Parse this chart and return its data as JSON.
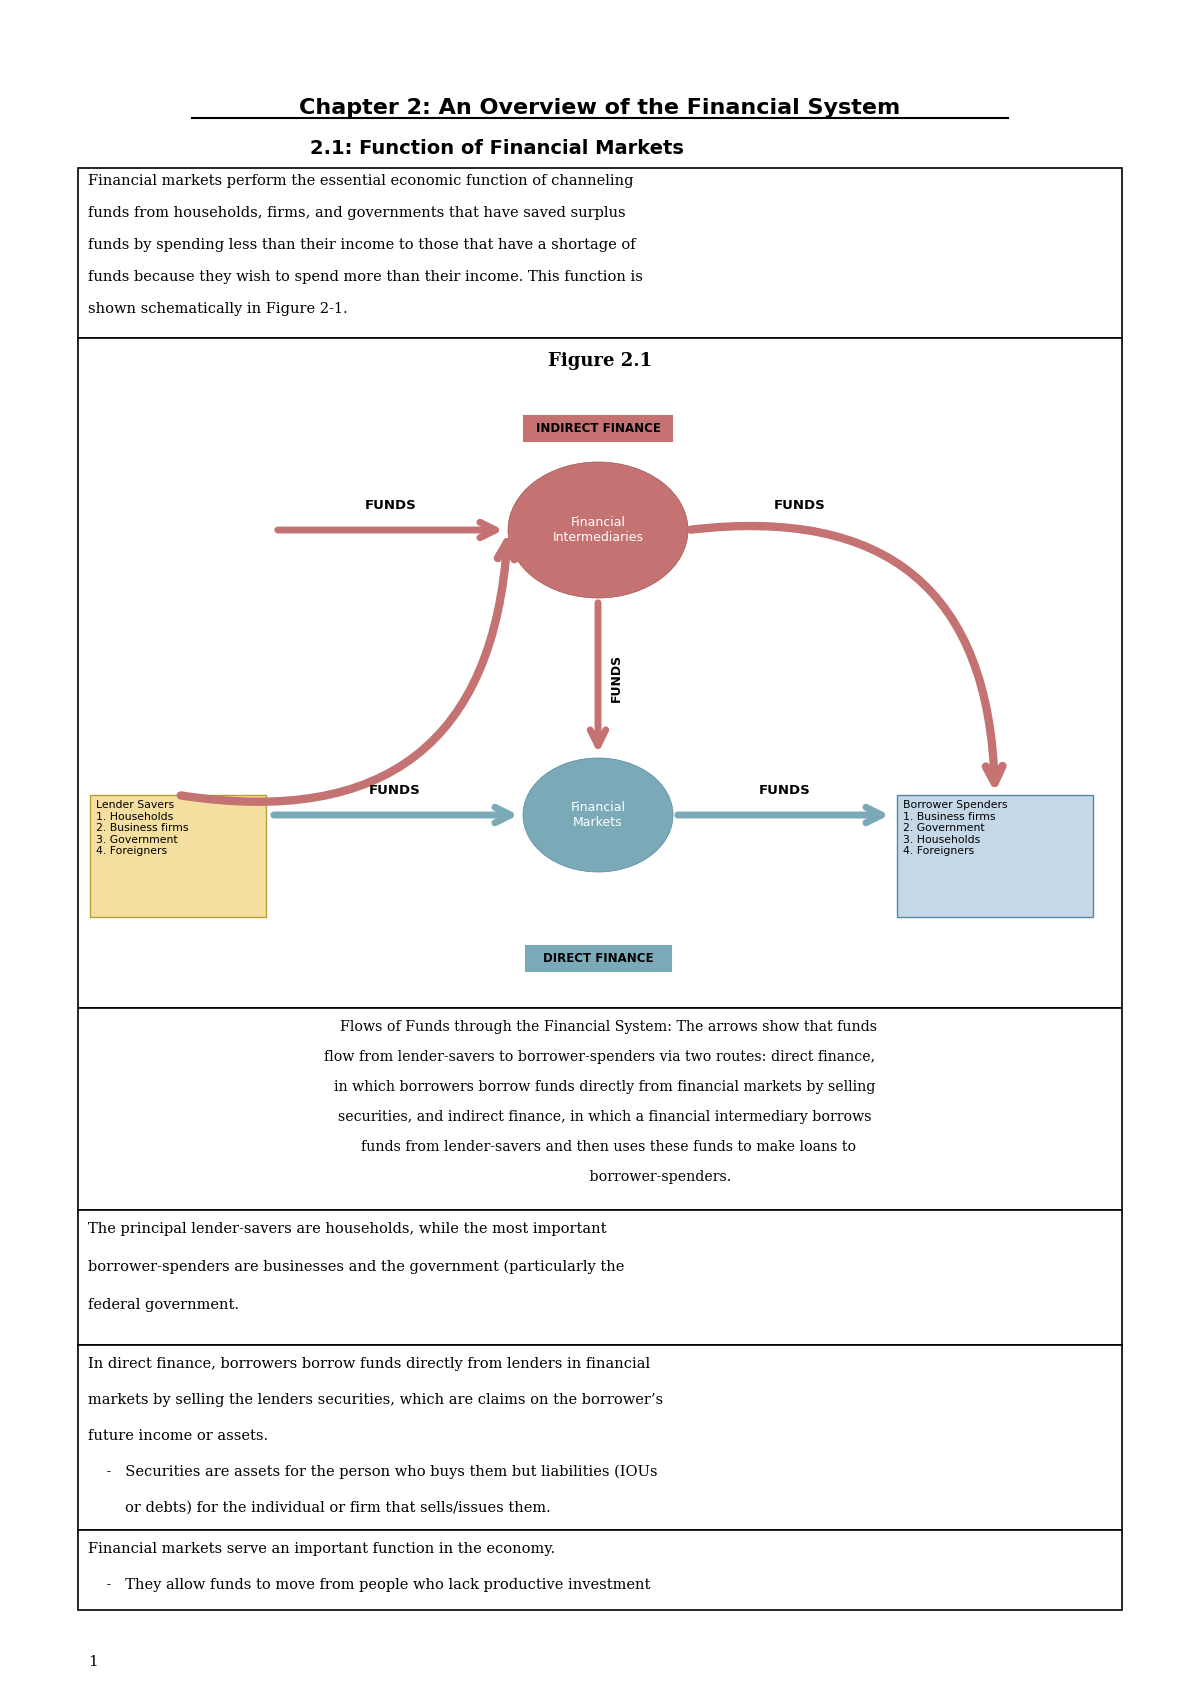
{
  "title": "Chapter 2: An Overview of the Financial System",
  "subtitle": "2.1: Function of Financial Markets",
  "figure_title": "Figure 2.1",
  "arrow_color": "#C47272",
  "teal_color": "#7AAAB8",
  "lender_box_color": "#F5DFA0",
  "borrower_box_color": "#C5D8E8",
  "intro_lines": [
    "Financial markets perform the essential economic function of channeling",
    "funds from households, firms, and governments that have saved surplus",
    "funds by spending less than their income to those that have a shortage of",
    "funds because they wish to spend more than their income. This function is",
    "shown schematically in Figure 2-1."
  ],
  "caption_lines": [
    "    Flows of Funds through the Financial System: The arrows show that funds",
    "flow from lender-savers to borrower-spenders via two routes: direct finance,",
    "  in which borrowers borrow funds directly from financial markets by selling",
    "  securities, and indirect finance, in which a financial intermediary borrows",
    "    funds from lender-savers and then uses these funds to make loans to",
    "                           borrower-spenders."
  ],
  "body1_lines": [
    "The principal lender-savers are households, while the most important",
    "borrower-spenders are businesses and the government (particularly the",
    "federal government."
  ],
  "body2_lines": [
    "In direct finance, borrowers borrow funds directly from lenders in financial",
    "markets by selling the lenders securities, which are claims on the borrower’s",
    "future income or assets.",
    "    -   Securities are assets for the person who buys them but liabilities (IOUs",
    "        or debts) for the individual or firm that sells/issues them."
  ],
  "body3_lines": [
    "Financial markets serve an important function in the economy.",
    "    -   They allow funds to move from people who lack productive investment"
  ],
  "page_number": "1",
  "bg_color": "#FFFFFF",
  "text_color": "#000000"
}
